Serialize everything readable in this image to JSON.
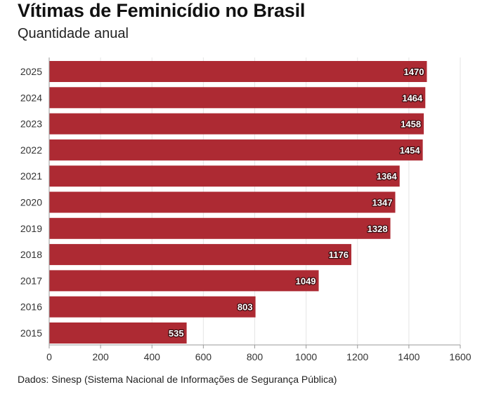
{
  "title": "Vítimas de Feminicídio no Brasil",
  "subtitle": "Quantidade anual",
  "source": "Dados: Sinesp (Sistema Nacional de Informações de Segurança Pública)",
  "colors": {
    "bar": "#ad2a33",
    "grid": "#e5e5e5",
    "axis": "#9a9a9a"
  },
  "chart_data": {
    "type": "bar",
    "orientation": "horizontal",
    "categories": [
      "2025",
      "2024",
      "2023",
      "2022",
      "2021",
      "2020",
      "2019",
      "2018",
      "2017",
      "2016",
      "2015"
    ],
    "values": [
      1470,
      1464,
      1458,
      1454,
      1364,
      1347,
      1328,
      1176,
      1049,
      803,
      535
    ],
    "xlim": [
      0,
      1600
    ],
    "xticks": [
      0,
      200,
      400,
      600,
      800,
      1000,
      1200,
      1400,
      1600
    ],
    "grid": true,
    "data_labels": true
  }
}
